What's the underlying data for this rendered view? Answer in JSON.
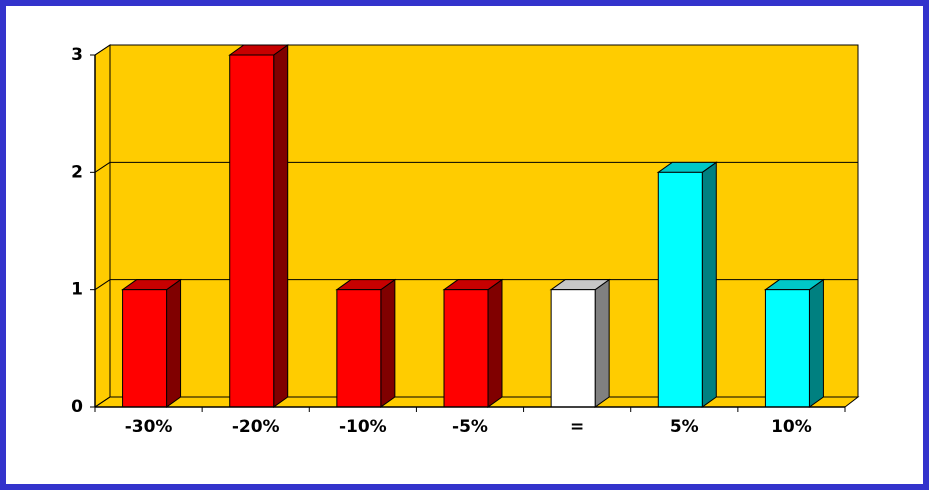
{
  "chart_data": {
    "type": "bar",
    "categories": [
      "-30%",
      "-20%",
      "-10%",
      "-5%",
      "=",
      "5%",
      "10%"
    ],
    "values": [
      1,
      3,
      1,
      1,
      1,
      2,
      1
    ],
    "colors": [
      "#ff0000",
      "#ff0000",
      "#ff0000",
      "#ff0000",
      "#ffffff",
      "#00ffff",
      "#00ffff"
    ],
    "ylim": [
      0,
      3
    ],
    "yticks": [
      0,
      1,
      2,
      3
    ],
    "grid": true
  }
}
